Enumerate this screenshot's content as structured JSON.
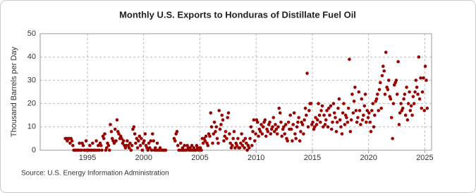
{
  "chart_data": {
    "type": "scatter",
    "title": "Monthly U.S. Exports to Honduras of Distillate Fuel Oil",
    "y_label": "Thousand Barrels per Day",
    "source": "Source: U.S. Energy Information Administration",
    "xlim": [
      1990.8,
      2025.6
    ],
    "ylim": [
      0,
      50
    ],
    "xticks": [
      1995,
      2000,
      2005,
      2010,
      2015,
      2020,
      2025
    ],
    "yticks": [
      0,
      10,
      20,
      30,
      40,
      50
    ],
    "grid": true,
    "color": "#990000",
    "x": [
      1993.04,
      1993.13,
      1993.21,
      1993.29,
      1993.38,
      1993.46,
      1993.54,
      1993.63,
      1993.71,
      1993.79,
      1993.88,
      1993.96,
      1994.04,
      1994.13,
      1994.21,
      1994.29,
      1994.38,
      1994.46,
      1994.54,
      1994.63,
      1994.71,
      1994.79,
      1994.88,
      1994.96,
      1995.04,
      1995.13,
      1995.21,
      1995.29,
      1995.38,
      1995.46,
      1995.54,
      1995.63,
      1995.71,
      1995.79,
      1995.88,
      1995.96,
      1996.04,
      1996.13,
      1996.21,
      1996.29,
      1996.38,
      1996.46,
      1996.54,
      1996.63,
      1996.71,
      1996.79,
      1996.88,
      1996.96,
      1997.04,
      1997.13,
      1997.21,
      1997.29,
      1997.38,
      1997.46,
      1997.54,
      1997.63,
      1997.71,
      1997.79,
      1997.88,
      1997.96,
      1998.04,
      1998.13,
      1998.21,
      1998.29,
      1998.38,
      1998.46,
      1998.54,
      1998.63,
      1998.71,
      1998.79,
      1998.88,
      1998.96,
      1999.04,
      1999.13,
      1999.21,
      1999.29,
      1999.38,
      1999.46,
      1999.54,
      1999.63,
      1999.71,
      1999.79,
      1999.88,
      1999.96,
      2000.04,
      2000.13,
      2000.21,
      2000.29,
      2000.38,
      2000.46,
      2000.54,
      2000.63,
      2000.71,
      2000.79,
      2000.88,
      2000.96,
      2001.04,
      2001.13,
      2001.21,
      2001.29,
      2001.38,
      2001.46,
      2001.54,
      2001.63,
      2001.71,
      2001.79,
      2001.88,
      2001.96,
      2002.71,
      2002.79,
      2002.88,
      2002.96,
      2003.04,
      2003.13,
      2003.21,
      2003.29,
      2003.38,
      2003.46,
      2003.54,
      2003.63,
      2003.71,
      2003.79,
      2003.88,
      2003.96,
      2004.04,
      2004.13,
      2004.21,
      2004.29,
      2004.38,
      2004.46,
      2004.54,
      2004.63,
      2004.71,
      2004.79,
      2004.88,
      2004.96,
      2005.04,
      2005.13,
      2005.21,
      2005.29,
      2005.38,
      2005.46,
      2005.54,
      2005.63,
      2005.71,
      2005.79,
      2005.88,
      2005.96,
      2006.04,
      2006.13,
      2006.21,
      2006.29,
      2006.38,
      2006.46,
      2006.54,
      2006.63,
      2006.71,
      2006.79,
      2006.88,
      2006.96,
      2007.04,
      2007.13,
      2007.21,
      2007.29,
      2007.38,
      2007.46,
      2007.54,
      2007.63,
      2007.71,
      2007.79,
      2007.88,
      2007.96,
      2008.04,
      2008.13,
      2008.21,
      2008.29,
      2008.38,
      2008.46,
      2008.54,
      2008.63,
      2008.71,
      2008.79,
      2008.88,
      2008.96,
      2009.04,
      2009.13,
      2009.21,
      2009.29,
      2009.38,
      2009.46,
      2009.54,
      2009.63,
      2009.71,
      2009.79,
      2009.88,
      2009.96,
      2010.04,
      2010.13,
      2010.21,
      2010.29,
      2010.38,
      2010.46,
      2010.54,
      2010.63,
      2010.71,
      2010.79,
      2010.88,
      2010.96,
      2011.04,
      2011.13,
      2011.21,
      2011.29,
      2011.38,
      2011.46,
      2011.54,
      2011.63,
      2011.71,
      2011.79,
      2011.88,
      2011.96,
      2012.04,
      2012.13,
      2012.21,
      2012.29,
      2012.38,
      2012.46,
      2012.54,
      2012.63,
      2012.71,
      2012.79,
      2012.88,
      2012.96,
      2013.04,
      2013.13,
      2013.21,
      2013.29,
      2013.38,
      2013.46,
      2013.54,
      2013.63,
      2013.71,
      2013.79,
      2013.88,
      2013.96,
      2014.04,
      2014.13,
      2014.21,
      2014.29,
      2014.38,
      2014.46,
      2014.54,
      2014.63,
      2014.71,
      2014.79,
      2014.88,
      2014.96,
      2015.04,
      2015.13,
      2015.21,
      2015.29,
      2015.38,
      2015.46,
      2015.54,
      2015.63,
      2015.71,
      2015.79,
      2015.88,
      2015.96,
      2016.04,
      2016.13,
      2016.21,
      2016.29,
      2016.38,
      2016.46,
      2016.54,
      2016.63,
      2016.71,
      2016.79,
      2016.88,
      2016.96,
      2017.04,
      2017.13,
      2017.21,
      2017.29,
      2017.38,
      2017.46,
      2017.54,
      2017.63,
      2017.71,
      2017.79,
      2017.88,
      2017.96,
      2018.04,
      2018.13,
      2018.21,
      2018.29,
      2018.38,
      2018.46,
      2018.54,
      2018.63,
      2018.71,
      2018.79,
      2018.88,
      2018.96,
      2019.04,
      2019.13,
      2019.21,
      2019.29,
      2019.38,
      2019.46,
      2019.54,
      2019.63,
      2019.71,
      2019.79,
      2019.88,
      2019.96,
      2020.04,
      2020.13,
      2020.21,
      2020.29,
      2020.38,
      2020.46,
      2020.54,
      2020.63,
      2020.71,
      2020.79,
      2020.88,
      2020.96,
      2021.04,
      2021.13,
      2021.21,
      2021.29,
      2021.38,
      2021.46,
      2021.54,
      2021.63,
      2021.71,
      2021.79,
      2021.88,
      2021.96,
      2022.04,
      2022.13,
      2022.21,
      2022.29,
      2022.38,
      2022.46,
      2022.54,
      2022.63,
      2022.71,
      2022.79,
      2022.88,
      2022.96,
      2023.04,
      2023.13,
      2023.21,
      2023.29,
      2023.38,
      2023.46,
      2023.54,
      2023.63,
      2023.71,
      2023.79,
      2023.88,
      2023.96,
      2024.04,
      2024.13,
      2024.21,
      2024.29,
      2024.38,
      2024.46,
      2024.54,
      2024.63,
      2024.71,
      2024.79,
      2024.88,
      2024.96,
      2025.04,
      2025.13,
      2025.21
    ],
    "values": [
      5,
      5,
      4,
      5,
      5,
      3,
      5,
      4,
      2,
      0,
      0,
      0,
      0,
      0,
      0,
      3,
      0,
      0,
      3,
      2,
      0,
      0,
      4,
      0,
      0,
      0,
      2,
      0,
      0,
      3,
      0,
      0,
      0,
      4,
      0,
      2,
      0,
      3,
      2,
      0,
      6,
      5,
      7,
      0,
      1,
      3,
      2,
      0,
      11,
      8,
      5,
      4,
      3,
      9,
      4,
      13,
      8,
      7,
      5,
      6,
      5,
      3,
      4,
      2,
      1,
      2,
      4,
      2,
      1,
      3,
      0,
      2,
      9,
      10,
      7,
      3,
      5,
      1,
      4,
      6,
      2,
      5,
      0,
      3,
      4,
      7,
      2,
      1,
      0,
      3,
      1,
      4,
      0,
      7,
      4,
      0,
      1,
      0,
      3,
      0,
      0,
      1,
      0,
      0,
      0,
      0,
      0,
      0,
      5,
      4,
      7,
      8,
      2,
      0,
      0,
      3,
      0,
      1,
      0,
      2,
      0,
      0,
      2,
      1,
      0,
      1,
      0,
      2,
      0,
      1,
      0,
      0,
      2,
      1,
      0,
      1,
      1,
      0,
      5,
      3,
      5,
      4,
      6,
      3,
      2,
      7,
      6,
      16,
      10,
      3,
      7,
      12,
      8,
      10,
      5,
      3,
      17,
      9,
      11,
      15,
      13,
      4,
      6,
      8,
      5,
      14,
      16,
      7,
      3,
      1,
      2,
      5,
      8,
      1,
      3,
      2,
      5,
      1,
      1,
      3,
      7,
      2,
      4,
      1,
      5,
      3,
      0,
      2,
      1,
      5,
      10,
      2,
      8,
      13,
      4,
      7,
      13,
      12,
      6,
      9,
      8,
      11,
      7,
      10,
      12,
      13,
      6,
      9,
      8,
      11,
      12,
      7,
      9,
      10,
      14,
      8,
      11,
      9,
      7,
      10,
      18,
      16,
      12,
      6,
      9,
      10,
      7,
      11,
      5,
      4,
      12,
      9,
      15,
      9,
      4,
      11,
      16,
      7,
      5,
      10,
      12,
      14,
      4,
      8,
      12,
      11,
      7,
      13,
      18,
      15,
      33,
      10,
      17,
      20,
      20,
      11,
      12,
      9,
      10,
      14,
      11,
      13,
      20,
      15,
      12,
      17,
      19,
      10,
      15,
      11,
      13,
      17,
      10,
      18,
      15,
      19,
      9,
      12,
      20,
      16,
      14,
      8,
      12,
      18,
      22,
      13,
      10,
      7,
      16,
      20,
      11,
      15,
      14,
      12,
      18,
      39,
      8,
      13,
      24,
      16,
      21,
      27,
      17,
      12,
      14,
      25,
      17,
      11,
      22,
      13,
      15,
      19,
      24,
      12,
      17,
      14,
      16,
      12,
      8,
      17,
      20,
      10,
      15,
      21,
      22,
      24,
      17,
      26,
      29,
      18,
      32,
      36,
      34,
      24,
      42,
      27,
      26,
      30,
      23,
      22,
      14,
      5,
      20,
      28,
      29,
      30,
      24,
      38,
      11,
      16,
      20,
      17,
      18,
      22,
      24,
      15,
      27,
      13,
      20,
      25,
      17,
      19,
      15,
      23,
      20,
      25,
      30,
      27,
      24,
      40,
      22,
      31,
      18,
      25,
      31,
      17,
      36,
      30,
      18
    ]
  }
}
